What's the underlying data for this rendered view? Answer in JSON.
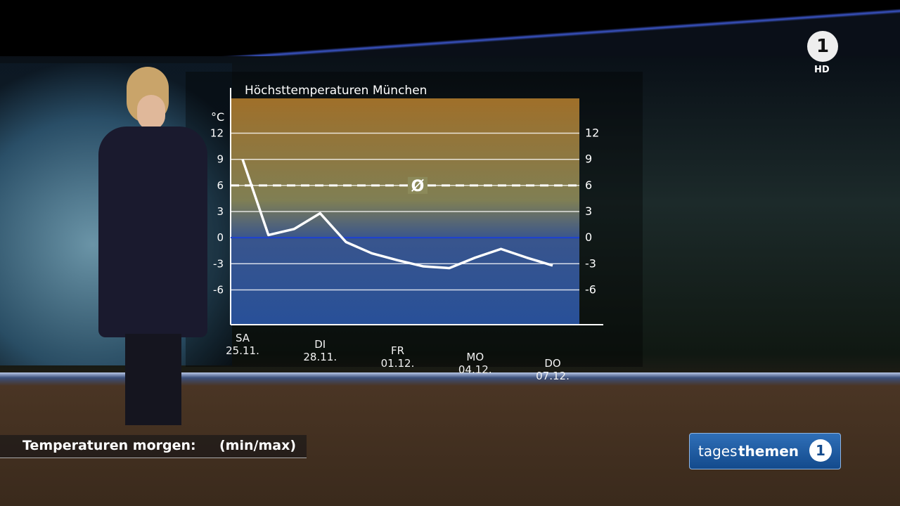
{
  "chart_data": {
    "type": "line",
    "title": "Höchsttemperaturen München",
    "y_label": "°C",
    "categories": [
      "SA\n25.11.",
      null,
      null,
      "DI\n28.11.",
      null,
      null,
      "FR\n01.12.",
      null,
      null,
      "MO\n04.12.",
      null,
      null,
      "DO\n07.12."
    ],
    "series": [
      {
        "name": "Höchsttemperatur",
        "color": "#ffffff",
        "values": [
          9,
          0.3,
          1,
          2.8,
          -0.5,
          -1.8,
          -2.6,
          -3.3,
          -3.5,
          -2.3,
          -1.3,
          -2.3,
          -3.2
        ]
      }
    ],
    "average": {
      "value": 6,
      "label": "Ø"
    },
    "ylim": [
      -10,
      16
    ],
    "yticks": [
      12,
      9,
      6,
      3,
      0,
      -3,
      -6
    ],
    "grid": true
  },
  "lower_third": {
    "text": "Temperaturen morgen:",
    "suffix": "(min/max)"
  },
  "logo": {
    "channel": "HD",
    "show_pre": "tages",
    "show_bold": "themen"
  }
}
